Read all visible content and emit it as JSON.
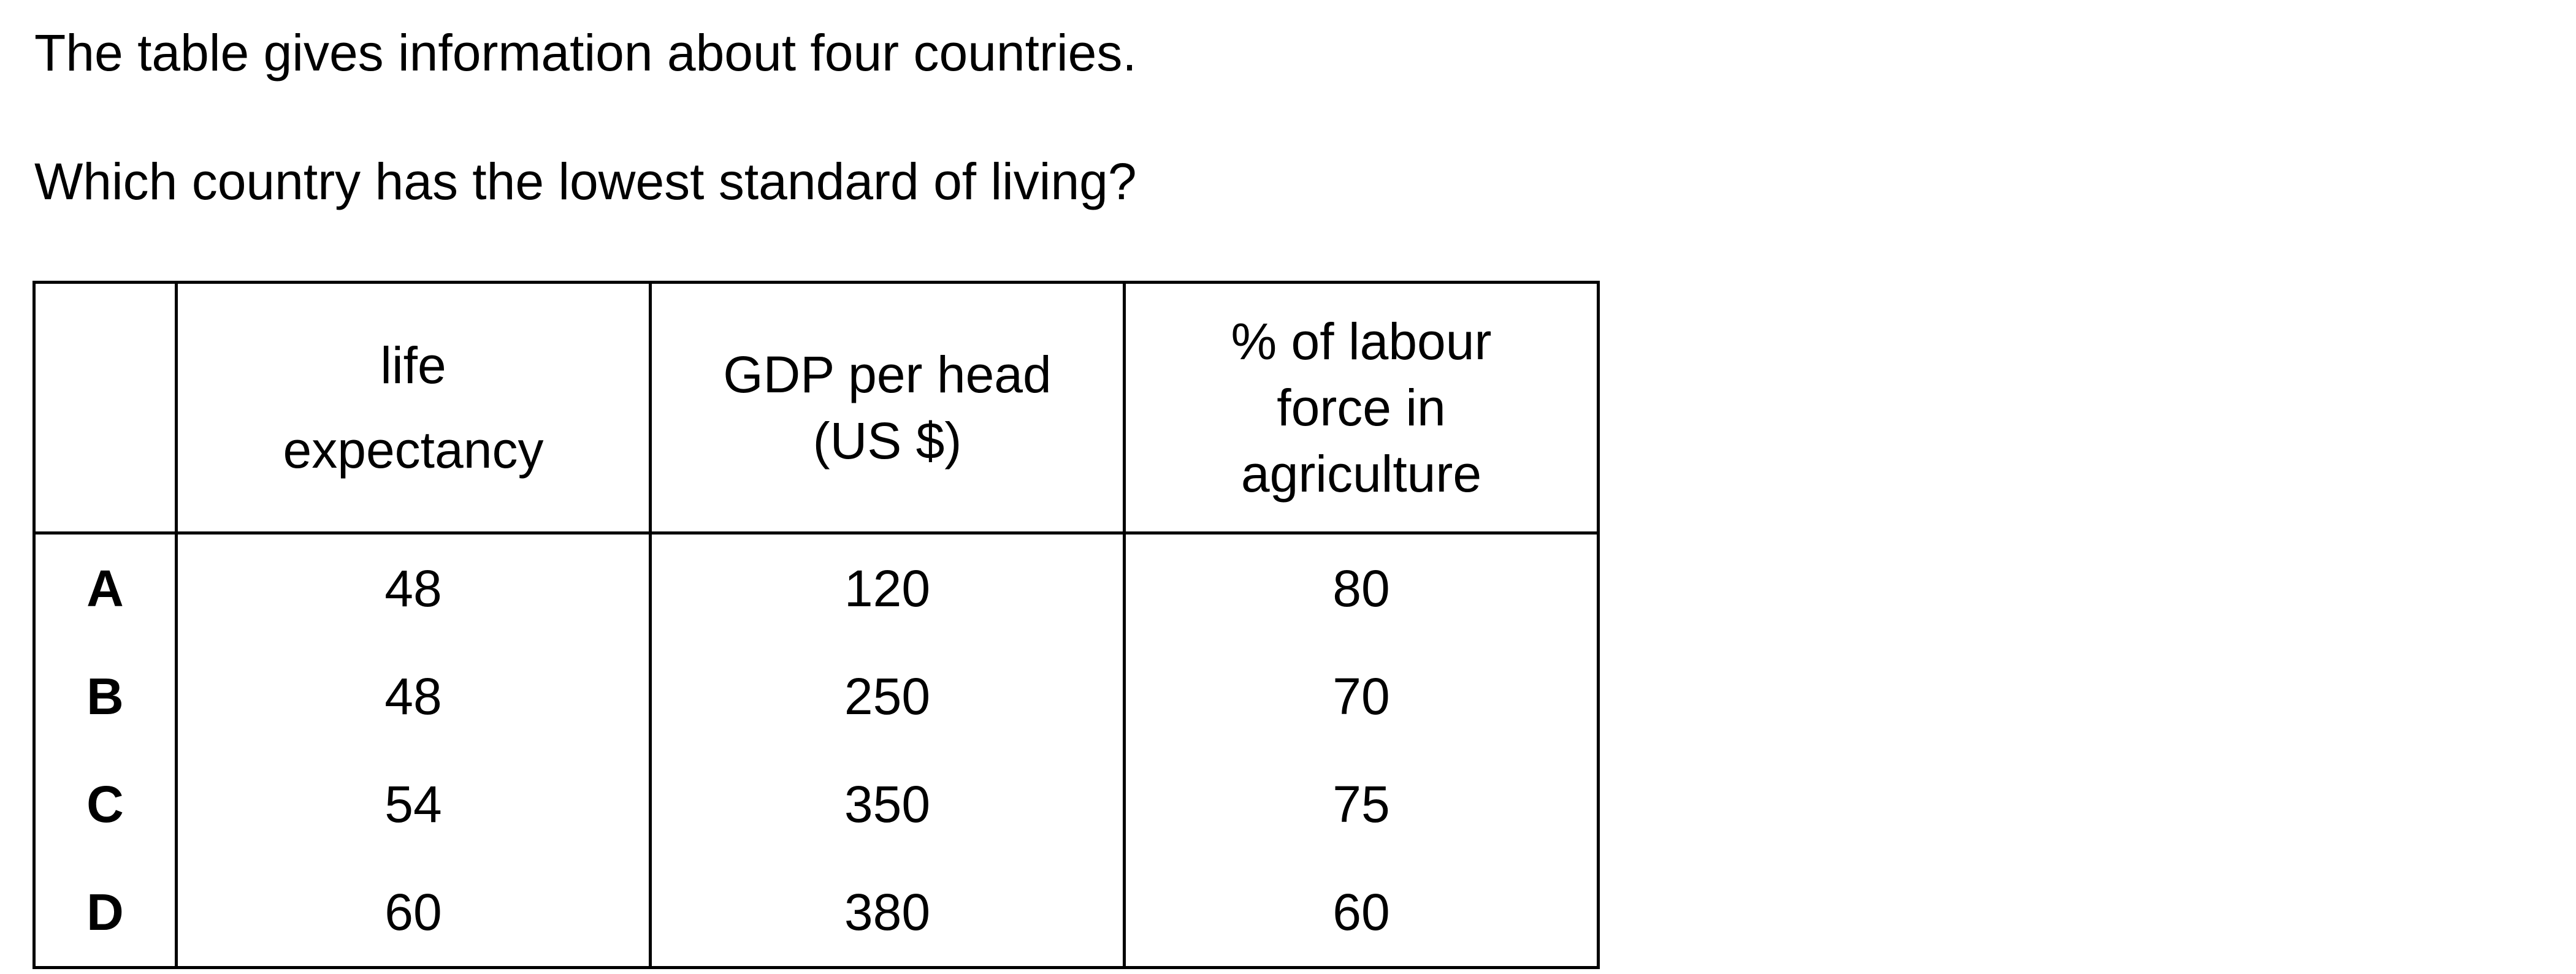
{
  "intro": "The table gives information about four countries.",
  "question": "Which country has the lowest standard of living?",
  "table": {
    "columns": [
      {
        "lines": [
          "life",
          "expectancy"
        ]
      },
      {
        "lines": [
          "GDP per head",
          "(US $)"
        ]
      },
      {
        "lines": [
          "% of labour",
          "force in",
          "agriculture"
        ]
      }
    ],
    "rows": [
      {
        "label": "A",
        "life_expectancy": "48",
        "gdp_per_head": "120",
        "labour_agriculture": "80"
      },
      {
        "label": "B",
        "life_expectancy": "48",
        "gdp_per_head": "250",
        "labour_agriculture": "70"
      },
      {
        "label": "C",
        "life_expectancy": "54",
        "gdp_per_head": "350",
        "labour_agriculture": "75"
      },
      {
        "label": "D",
        "life_expectancy": "60",
        "gdp_per_head": "380",
        "labour_agriculture": "60"
      }
    ]
  }
}
